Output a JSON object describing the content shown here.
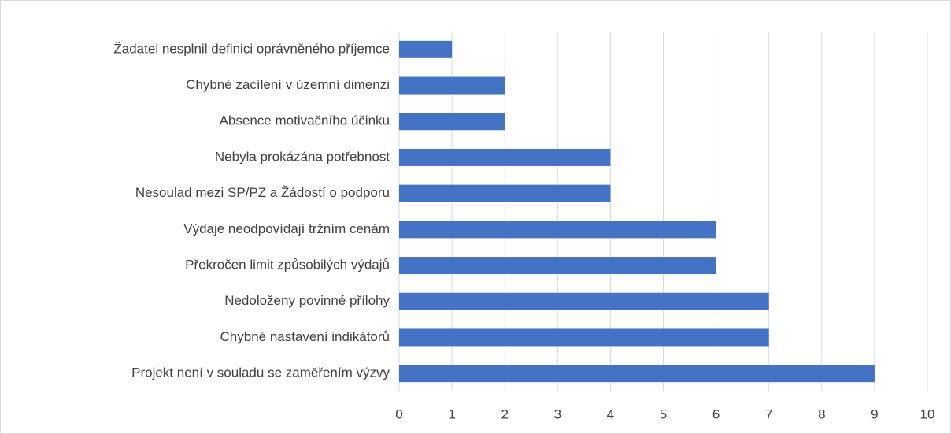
{
  "chart_data": {
    "type": "barh",
    "categories": [
      "Žadatel nesplnil definici oprávněného příjemce",
      "Chybné zacílení v územní dimenzi",
      "Absence motivačního účinku",
      "Nebyla prokázána potřebnost",
      "Nesoulad mezi SP/PZ a Žádostí o podporu",
      "Výdaje neodpovídají tržním cenám",
      "Překročen limit způsobilých výdajů",
      "Nedoloženy povinné přílohy",
      "Chybné nastavení indikátorů",
      "Projekt není v souladu se zaměřením výzvy"
    ],
    "values": [
      1,
      2,
      2,
      4,
      4,
      6,
      6,
      7,
      7,
      9
    ],
    "color": "#4472c4",
    "xlim": [
      0,
      10
    ],
    "xticks": [
      0,
      1,
      2,
      3,
      4,
      5,
      6,
      7,
      8,
      9,
      10
    ],
    "grid": true
  }
}
